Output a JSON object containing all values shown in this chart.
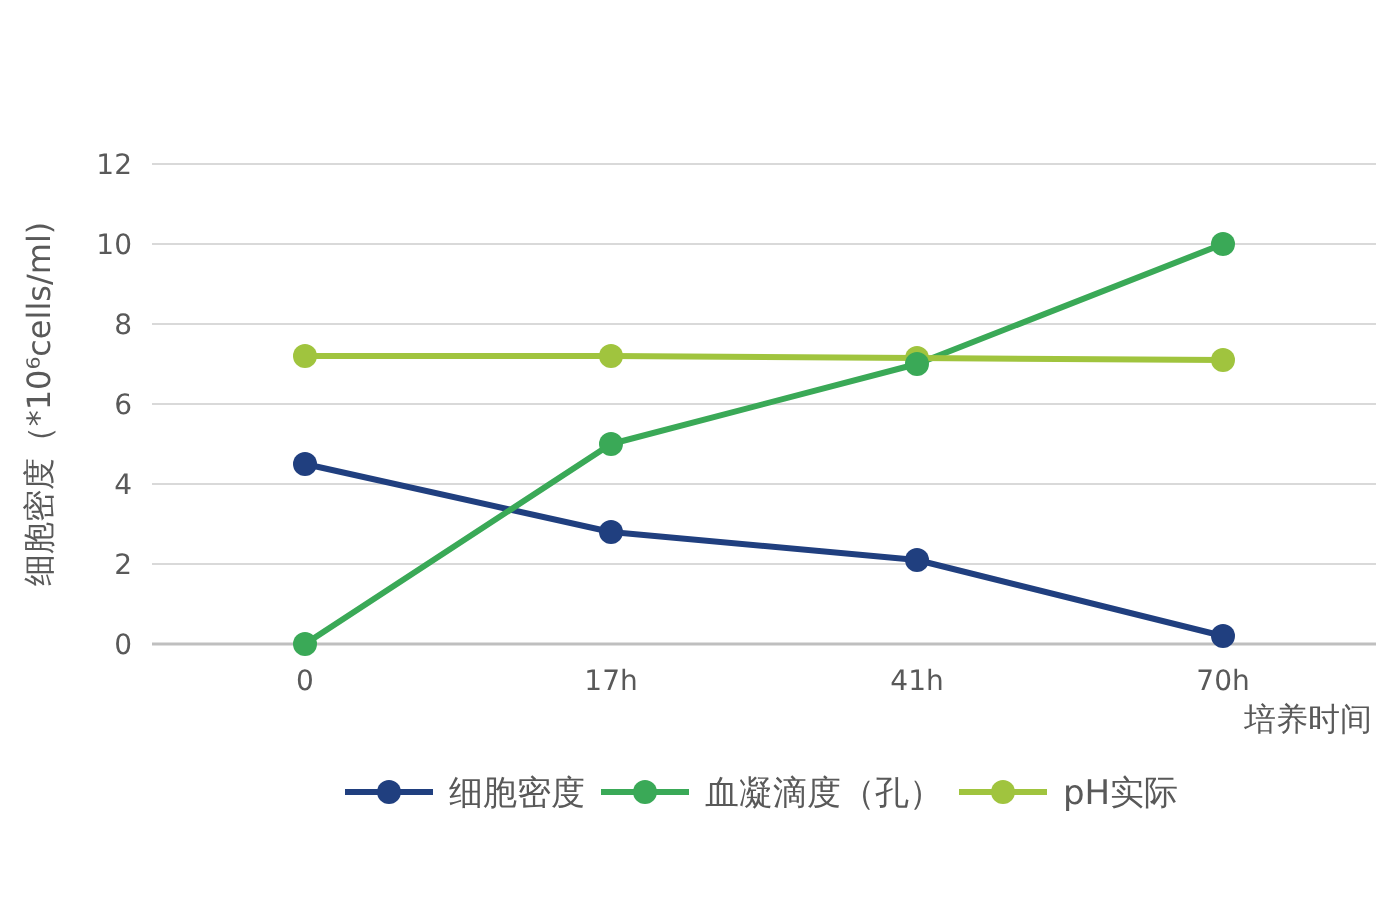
{
  "chart_data": {
    "type": "line",
    "xlabel": "培养时间",
    "ylabel": "细胞密度（*10⁶cells/ml)",
    "categories": [
      "0",
      "17h",
      "41h",
      "70h"
    ],
    "series": [
      {
        "name": "细胞密度",
        "color": "#203f7f",
        "values": [
          4.5,
          2.8,
          2.1,
          0.2
        ]
      },
      {
        "name": "血凝滴度（孔）",
        "color": "#3aa957",
        "values": [
          0,
          5,
          7,
          10
        ]
      },
      {
        "name": "pH实际",
        "color": "#a0c43e",
        "values": [
          7.2,
          7.2,
          7.15,
          7.1
        ]
      }
    ],
    "ylim": [
      0,
      12
    ],
    "yticks": [
      0,
      2,
      4,
      6,
      8,
      10,
      12
    ],
    "grid": "y",
    "legend": "bottom",
    "marker": "circle",
    "line_style": "solid"
  }
}
